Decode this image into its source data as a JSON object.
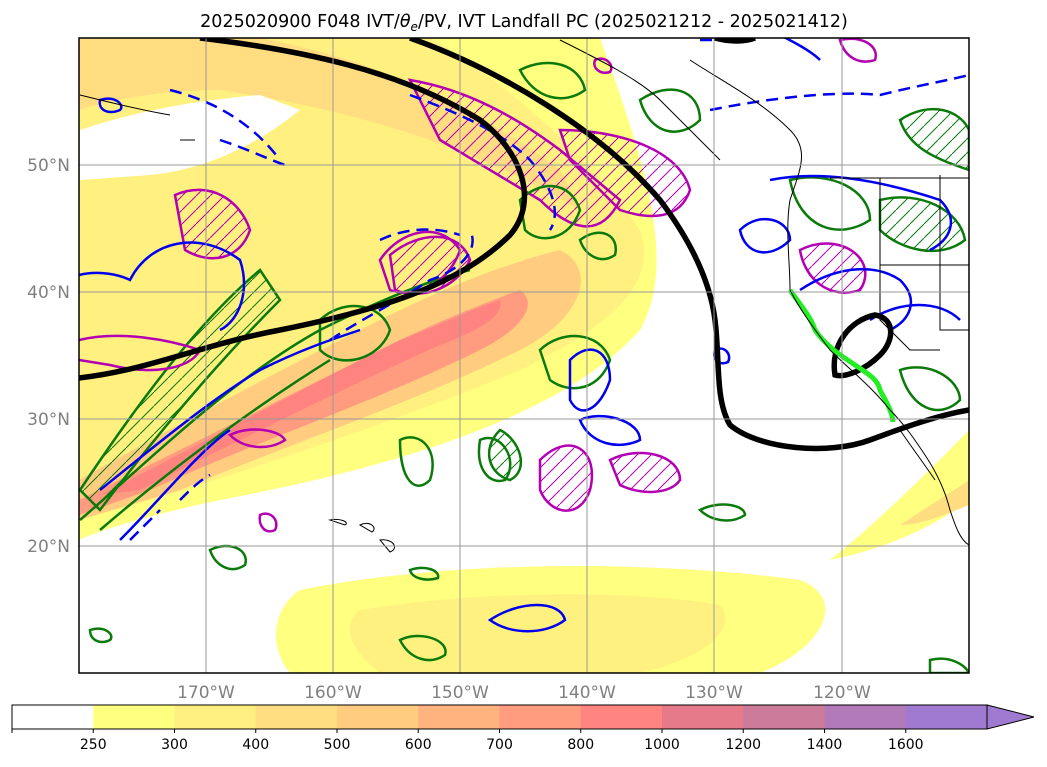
{
  "title": {
    "main": "2025020900 F048 IVT/",
    "theta": "θ",
    "sub": "e",
    "rest": "/PV, IVT Landfall PC (2025021212 - 2025021412)"
  },
  "map": {
    "lat_labels": [
      "50°N",
      "40°N",
      "30°N",
      "20°N"
    ],
    "lon_labels": [
      "170°W",
      "160°W",
      "150°W",
      "140°W",
      "130°W",
      "120°W"
    ],
    "lon_range": [
      -180,
      -110
    ],
    "lat_range": [
      10,
      59
    ],
    "gridlines": true
  },
  "colorbar": {
    "levels": [
      "250",
      "300",
      "400",
      "500",
      "600",
      "700",
      "800",
      "1000",
      "1200",
      "1400",
      "1600"
    ],
    "colors": [
      "#ffffff",
      "#ffff80",
      "#ffee80",
      "#ffdd80",
      "#ffcc80",
      "#ffb480",
      "#ff9c80",
      "#ff8480",
      "#e67a8a",
      "#cc7a9a",
      "#b37aba",
      "#a07ad0"
    ],
    "extend": "max"
  },
  "legend_colors": {
    "ivt_fill": "#ffe27a",
    "theta_e_solid": "#0a7a0a",
    "pv": "#b300b3",
    "blue_contour": "#0000ee",
    "mean_contour": "#000000",
    "landfall_line": "#22ee22"
  }
}
